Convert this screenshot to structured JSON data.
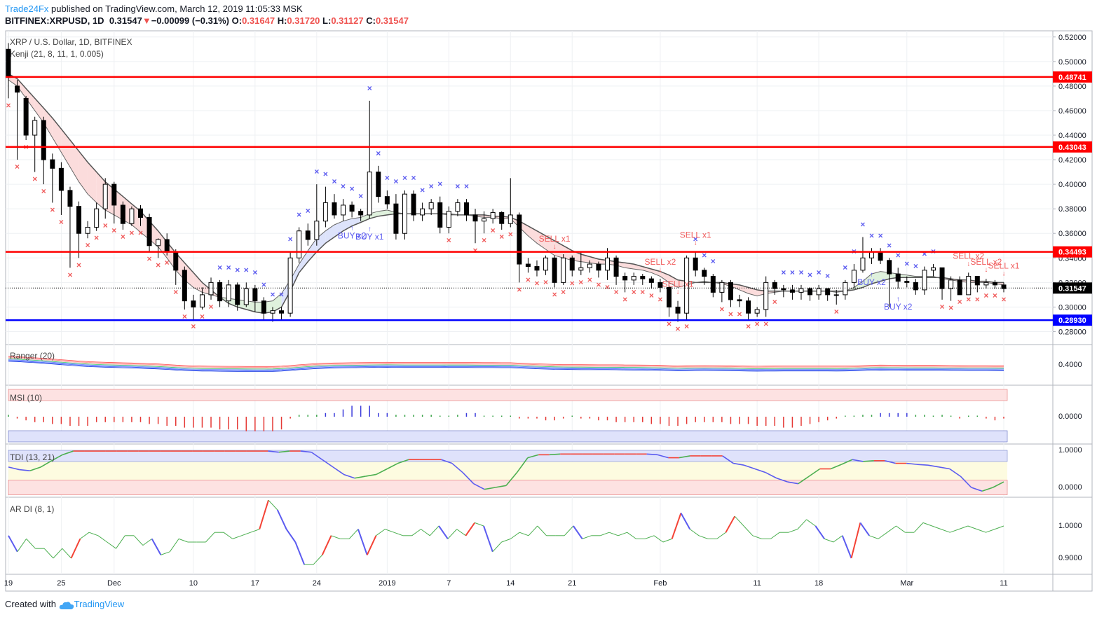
{
  "header": {
    "publisher": "Trade24Fx",
    "published_text": "published on TradingView.com, March 12, 2019 11:05:33 MSK",
    "symbol": "BITFINEX:XRPUSD, 1D",
    "last": "0.31547",
    "change": "−0.00099 (−0.31%)",
    "o_label": "O:",
    "o": "0.31647",
    "h_label": "H:",
    "h": "0.31720",
    "l_label": "L:",
    "l": "0.31127",
    "c_label": "C:",
    "c": "0.31547"
  },
  "footer": {
    "created_with": "Created with",
    "brand": "TradingView"
  },
  "colors": {
    "up": "#ffffff",
    "down": "#000000",
    "red_line": "#ff0000",
    "blue_line": "#0000ff",
    "buy_mark": "#5b5bf0",
    "sell_mark": "#f05b5b",
    "axis_text": "#131722",
    "grid": "#eef0f3"
  },
  "chart_data": {
    "type": "candlestick",
    "main": {
      "title": "XRP / U.S. Dollar, 1D, BITFINEX",
      "indicator_label": "Kenji (21, 8, 11, 1, 0.005)",
      "ylim": [
        0.27,
        0.525
      ],
      "y_ticks": [
        "0.52000",
        "0.50000",
        "0.48000",
        "0.46000",
        "0.44000",
        "0.42000",
        "0.40000",
        "0.38000",
        "0.36000",
        "0.34000",
        "0.32000",
        "0.30000",
        "0.28000"
      ],
      "y_tick_values": [
        0.52,
        0.5,
        0.48,
        0.46,
        0.44,
        0.42,
        0.4,
        0.38,
        0.36,
        0.34,
        0.32,
        0.3,
        0.28
      ],
      "x_labels": [
        "19",
        "25",
        "Dec",
        "10",
        "17",
        "24",
        "2019",
        "7",
        "14",
        "21",
        "Feb",
        "11",
        "18",
        "Mar",
        "11"
      ],
      "x_label_bar_index": [
        0,
        6,
        12,
        21,
        28,
        35,
        43,
        50,
        57,
        64,
        74,
        85,
        92,
        102,
        113
      ],
      "bar_count": 114,
      "price_lines": [
        {
          "value": 0.48741,
          "label": "0.48741",
          "color": "#ff0000"
        },
        {
          "value": 0.43043,
          "label": "0.43043",
          "color": "#ff0000"
        },
        {
          "value": 0.34493,
          "label": "0.34493",
          "color": "#ff0000"
        },
        {
          "value": 0.2893,
          "label": "0.28930",
          "color": "#0000ff"
        }
      ],
      "last_price": {
        "value": 0.31547,
        "label": "0.31547"
      },
      "close": [
        0.487,
        0.475,
        0.44,
        0.452,
        0.42,
        0.413,
        0.395,
        0.382,
        0.36,
        0.365,
        0.38,
        0.4,
        0.383,
        0.368,
        0.38,
        0.373,
        0.35,
        0.355,
        0.345,
        0.33,
        0.305,
        0.3,
        0.31,
        0.32,
        0.305,
        0.318,
        0.302,
        0.315,
        0.305,
        0.295,
        0.297,
        0.295,
        0.34,
        0.362,
        0.355,
        0.37,
        0.385,
        0.375,
        0.383,
        0.378,
        0.375,
        0.41,
        0.39,
        0.384,
        0.36,
        0.392,
        0.375,
        0.38,
        0.385,
        0.365,
        0.378,
        0.385,
        0.375,
        0.37,
        0.372,
        0.377,
        0.368,
        0.375,
        0.335,
        0.333,
        0.33,
        0.34,
        0.32,
        0.34,
        0.33,
        0.332,
        0.335,
        0.33,
        0.34,
        0.325,
        0.322,
        0.325,
        0.323,
        0.32,
        0.316,
        0.3,
        0.295,
        0.34,
        0.33,
        0.325,
        0.312,
        0.32,
        0.306,
        0.305,
        0.295,
        0.298,
        0.32,
        0.315,
        0.314,
        0.312,
        0.315,
        0.31,
        0.315,
        0.31,
        0.31,
        0.32,
        0.33,
        0.34,
        0.345,
        0.338,
        0.327,
        0.321,
        0.32,
        0.314,
        0.33,
        0.332,
        0.315,
        0.322,
        0.31,
        0.325,
        0.318,
        0.32,
        0.318,
        0.315
      ],
      "open": [
        0.51,
        0.48,
        0.47,
        0.44,
        0.452,
        0.42,
        0.413,
        0.395,
        0.382,
        0.36,
        0.365,
        0.38,
        0.4,
        0.383,
        0.368,
        0.38,
        0.373,
        0.35,
        0.355,
        0.345,
        0.33,
        0.305,
        0.3,
        0.31,
        0.32,
        0.305,
        0.318,
        0.302,
        0.315,
        0.305,
        0.295,
        0.297,
        0.295,
        0.34,
        0.362,
        0.355,
        0.37,
        0.385,
        0.375,
        0.383,
        0.378,
        0.375,
        0.41,
        0.39,
        0.384,
        0.36,
        0.392,
        0.375,
        0.38,
        0.385,
        0.365,
        0.378,
        0.385,
        0.375,
        0.37,
        0.372,
        0.377,
        0.368,
        0.375,
        0.335,
        0.333,
        0.33,
        0.34,
        0.32,
        0.34,
        0.33,
        0.332,
        0.335,
        0.33,
        0.34,
        0.325,
        0.322,
        0.325,
        0.323,
        0.32,
        0.316,
        0.3,
        0.295,
        0.34,
        0.33,
        0.325,
        0.312,
        0.32,
        0.306,
        0.305,
        0.295,
        0.298,
        0.32,
        0.315,
        0.314,
        0.312,
        0.315,
        0.31,
        0.315,
        0.31,
        0.31,
        0.32,
        0.33,
        0.34,
        0.345,
        0.338,
        0.327,
        0.321,
        0.32,
        0.314,
        0.33,
        0.332,
        0.315,
        0.322,
        0.31,
        0.325,
        0.318,
        0.32,
        0.318
      ],
      "high": [
        0.515,
        0.485,
        0.472,
        0.455,
        0.455,
        0.425,
        0.418,
        0.398,
        0.386,
        0.37,
        0.385,
        0.405,
        0.402,
        0.386,
        0.382,
        0.383,
        0.376,
        0.356,
        0.36,
        0.347,
        0.333,
        0.31,
        0.316,
        0.324,
        0.322,
        0.322,
        0.32,
        0.32,
        0.318,
        0.308,
        0.3,
        0.3,
        0.345,
        0.365,
        0.368,
        0.4,
        0.398,
        0.392,
        0.388,
        0.386,
        0.38,
        0.468,
        0.415,
        0.395,
        0.392,
        0.395,
        0.395,
        0.385,
        0.388,
        0.39,
        0.382,
        0.388,
        0.388,
        0.38,
        0.378,
        0.38,
        0.378,
        0.405,
        0.377,
        0.34,
        0.338,
        0.342,
        0.342,
        0.343,
        0.342,
        0.345,
        0.338,
        0.337,
        0.348,
        0.342,
        0.328,
        0.328,
        0.327,
        0.325,
        0.323,
        0.318,
        0.305,
        0.342,
        0.345,
        0.332,
        0.327,
        0.322,
        0.322,
        0.31,
        0.308,
        0.3,
        0.325,
        0.322,
        0.318,
        0.318,
        0.318,
        0.316,
        0.318,
        0.315,
        0.314,
        0.322,
        0.335,
        0.357,
        0.348,
        0.348,
        0.34,
        0.332,
        0.325,
        0.323,
        0.333,
        0.335,
        0.332,
        0.325,
        0.325,
        0.328,
        0.325,
        0.323,
        0.322,
        0.32
      ],
      "low": [
        0.47,
        0.42,
        0.436,
        0.41,
        0.4,
        0.385,
        0.375,
        0.332,
        0.34,
        0.356,
        0.362,
        0.372,
        0.368,
        0.363,
        0.366,
        0.366,
        0.345,
        0.34,
        0.342,
        0.318,
        0.298,
        0.29,
        0.298,
        0.306,
        0.3,
        0.3,
        0.297,
        0.3,
        0.296,
        0.29,
        0.288,
        0.29,
        0.292,
        0.336,
        0.35,
        0.35,
        0.365,
        0.372,
        0.37,
        0.373,
        0.37,
        0.372,
        0.385,
        0.38,
        0.355,
        0.355,
        0.37,
        0.37,
        0.375,
        0.36,
        0.36,
        0.374,
        0.37,
        0.352,
        0.36,
        0.368,
        0.363,
        0.365,
        0.32,
        0.328,
        0.325,
        0.326,
        0.316,
        0.318,
        0.325,
        0.326,
        0.328,
        0.324,
        0.322,
        0.318,
        0.312,
        0.318,
        0.318,
        0.315,
        0.312,
        0.292,
        0.288,
        0.29,
        0.325,
        0.318,
        0.308,
        0.304,
        0.3,
        0.3,
        0.29,
        0.292,
        0.292,
        0.31,
        0.308,
        0.306,
        0.306,
        0.305,
        0.306,
        0.305,
        0.302,
        0.306,
        0.315,
        0.328,
        0.335,
        0.335,
        0.3,
        0.315,
        0.316,
        0.31,
        0.31,
        0.325,
        0.306,
        0.305,
        0.31,
        0.312,
        0.312,
        0.315,
        0.315,
        0.312
      ],
      "cloud_fast": [
        0.485,
        0.48,
        0.47,
        0.46,
        0.45,
        0.438,
        0.426,
        0.414,
        0.402,
        0.392,
        0.385,
        0.379,
        0.375,
        0.371,
        0.367,
        0.361,
        0.355,
        0.349,
        0.34,
        0.33,
        0.322,
        0.316,
        0.312,
        0.31,
        0.308,
        0.307,
        0.306,
        0.305,
        0.304,
        0.304,
        0.305,
        0.311,
        0.322,
        0.335,
        0.346,
        0.356,
        0.362,
        0.367,
        0.37,
        0.372,
        0.373,
        0.376,
        0.378,
        0.379,
        0.377,
        0.376,
        0.376,
        0.376,
        0.376,
        0.376,
        0.375,
        0.375,
        0.375,
        0.374,
        0.373,
        0.373,
        0.372,
        0.372,
        0.365,
        0.358,
        0.352,
        0.347,
        0.342,
        0.34,
        0.338,
        0.337,
        0.336,
        0.335,
        0.335,
        0.334,
        0.332,
        0.331,
        0.33,
        0.328,
        0.325,
        0.32,
        0.316,
        0.318,
        0.32,
        0.321,
        0.32,
        0.319,
        0.317,
        0.314,
        0.311,
        0.309,
        0.311,
        0.312,
        0.313,
        0.313,
        0.313,
        0.313,
        0.313,
        0.313,
        0.312,
        0.313,
        0.316,
        0.321,
        0.327,
        0.329,
        0.328,
        0.327,
        0.326,
        0.325,
        0.325,
        0.325,
        0.323,
        0.322,
        0.321,
        0.32,
        0.32,
        0.32,
        0.319,
        0.318
      ],
      "cloud_slow": [
        0.49,
        0.486,
        0.478,
        0.47,
        0.462,
        0.454,
        0.445,
        0.436,
        0.427,
        0.418,
        0.41,
        0.402,
        0.396,
        0.39,
        0.384,
        0.378,
        0.37,
        0.362,
        0.353,
        0.344,
        0.336,
        0.328,
        0.32,
        0.314,
        0.308,
        0.303,
        0.3,
        0.298,
        0.296,
        0.295,
        0.296,
        0.3,
        0.313,
        0.328,
        0.337,
        0.345,
        0.352,
        0.357,
        0.362,
        0.366,
        0.369,
        0.372,
        0.374,
        0.375,
        0.376,
        0.376,
        0.376,
        0.376,
        0.376,
        0.376,
        0.376,
        0.375,
        0.375,
        0.375,
        0.375,
        0.374,
        0.374,
        0.373,
        0.37,
        0.366,
        0.362,
        0.358,
        0.354,
        0.35,
        0.346,
        0.343,
        0.341,
        0.339,
        0.338,
        0.337,
        0.336,
        0.335,
        0.333,
        0.331,
        0.329,
        0.326,
        0.322,
        0.321,
        0.32,
        0.32,
        0.32,
        0.32,
        0.319,
        0.318,
        0.316,
        0.314,
        0.313,
        0.313,
        0.313,
        0.313,
        0.313,
        0.313,
        0.313,
        0.313,
        0.313,
        0.313,
        0.314,
        0.316,
        0.319,
        0.321,
        0.323,
        0.324,
        0.324,
        0.324,
        0.324,
        0.324,
        0.324,
        0.323,
        0.322,
        0.322,
        0.321,
        0.321,
        0.32,
        0.32
      ],
      "buy_signals": [
        {
          "bar": 39,
          "label": "BUY x2"
        },
        {
          "bar": 41,
          "label": "BUY x1"
        },
        {
          "bar": 98,
          "label": "BUY x2"
        },
        {
          "bar": 101,
          "label": "BUY x2"
        }
      ],
      "sell_signals": [
        {
          "bar": 62,
          "label": "SELL x1"
        },
        {
          "bar": 74,
          "label": "SELL x2"
        },
        {
          "bar": 76,
          "label": "SELL x1"
        },
        {
          "bar": 78,
          "label": "SELL x1"
        },
        {
          "bar": 109,
          "label": "SELL x2"
        },
        {
          "bar": 111,
          "label": "SELL x2"
        },
        {
          "bar": 113,
          "label": "SELL x1"
        }
      ]
    },
    "ranger": {
      "label": "Ranger (20)",
      "y_tick": "0.4000"
    },
    "msi": {
      "label": "MSI (10)",
      "y_tick": "0.0000",
      "values": [
        0.1,
        -0.1,
        -0.2,
        -0.3,
        -0.3,
        -0.4,
        -0.4,
        -0.5,
        -0.5,
        -0.5,
        -0.3,
        -0.3,
        -0.3,
        -0.3,
        -0.3,
        -0.3,
        -0.4,
        -0.4,
        -0.5,
        -0.5,
        -0.6,
        -0.6,
        -0.6,
        -0.6,
        -0.7,
        -0.7,
        -0.7,
        -0.8,
        -0.8,
        -0.8,
        -0.8,
        -0.7,
        -0.1,
        0.1,
        0.1,
        0.1,
        0.2,
        0.2,
        0.4,
        0.6,
        0.6,
        0.6,
        0.2,
        0.2,
        0.1,
        0.1,
        0.1,
        0.1,
        0.1,
        0.0,
        0.0,
        0.1,
        0.2,
        0.2,
        0.0,
        0.0,
        0.0,
        0.0,
        -0.1,
        -0.1,
        -0.1,
        -0.2,
        -0.2,
        -0.1,
        0.0,
        -0.1,
        -0.1,
        -0.2,
        -0.2,
        -0.3,
        -0.3,
        -0.3,
        -0.3,
        -0.4,
        -0.4,
        -0.5,
        -0.5,
        -0.4,
        -0.3,
        -0.3,
        -0.3,
        -0.3,
        -0.4,
        -0.4,
        -0.4,
        -0.5,
        -0.5,
        -0.5,
        -0.6,
        -0.6,
        -0.5,
        -0.4,
        -0.3,
        -0.2,
        -0.1,
        0.0,
        0.0,
        0.1,
        0.1,
        0.2,
        0.2,
        0.2,
        0.2,
        0.1,
        0.1,
        0.0,
        0.1,
        0.0,
        -0.1,
        0.0,
        0.0,
        -0.1,
        -0.2,
        -0.1
      ]
    },
    "tdi": {
      "label": "TDI (13, 21)",
      "y_ticks": [
        "1.0000",
        "0.0000"
      ],
      "values": [
        0.55,
        0.48,
        0.45,
        0.55,
        0.72,
        0.88,
        0.98,
        0.98,
        0.98,
        0.98,
        0.98,
        0.98,
        0.98,
        0.98,
        0.98,
        0.98,
        0.98,
        0.98,
        0.98,
        0.98,
        0.98,
        0.98,
        0.98,
        0.98,
        0.98,
        0.95,
        0.98,
        0.98,
        0.95,
        0.75,
        0.55,
        0.35,
        0.25,
        0.3,
        0.35,
        0.5,
        0.65,
        0.75,
        0.75,
        0.75,
        0.75,
        0.65,
        0.4,
        0.1,
        -0.05,
        0.0,
        0.05,
        0.4,
        0.8,
        0.88,
        0.88,
        0.9,
        0.9,
        0.9,
        0.9,
        0.9,
        0.9,
        0.9,
        0.9,
        0.9,
        0.88,
        0.8,
        0.8,
        0.85,
        0.85,
        0.85,
        0.85,
        0.65,
        0.6,
        0.5,
        0.4,
        0.25,
        0.15,
        0.1,
        0.3,
        0.5,
        0.5,
        0.62,
        0.75,
        0.7,
        0.72,
        0.72,
        0.65,
        0.65,
        0.62,
        0.6,
        0.55,
        0.5,
        0.3,
        0.0,
        -0.1,
        0.0,
        0.15
      ]
    },
    "ardi": {
      "label": "AR DI (8, 1)",
      "y_ticks": [
        "1.0000",
        "0.9000"
      ],
      "values": [
        0.97,
        0.92,
        0.96,
        0.93,
        0.93,
        0.9,
        0.93,
        0.9,
        0.96,
        0.98,
        0.97,
        0.95,
        0.93,
        0.97,
        0.97,
        0.94,
        0.96,
        0.91,
        0.92,
        0.96,
        0.95,
        0.95,
        0.95,
        0.98,
        0.98,
        0.96,
        0.97,
        0.98,
        0.99,
        1.08,
        1.05,
        0.99,
        0.95,
        0.88,
        0.88,
        0.91,
        0.97,
        0.96,
        0.96,
        0.99,
        0.91,
        0.97,
        0.99,
        0.98,
        0.97,
        0.97,
        0.99,
        0.97,
        1.0,
        0.96,
        0.99,
        0.97,
        1.01,
        1.0,
        0.92,
        0.95,
        0.96,
        0.98,
        0.97,
        1.0,
        0.97,
        0.97,
        0.97,
        1.0,
        0.96,
        0.97,
        0.97,
        0.98,
        0.97,
        0.98,
        0.96,
        0.96,
        0.97,
        0.95,
        0.96,
        1.04,
        0.99,
        0.97,
        0.96,
        0.96,
        0.98,
        1.03,
        1.0,
        0.97,
        0.96,
        0.96,
        0.98,
        0.98,
        0.99,
        1.02,
        1.0,
        0.96,
        0.95,
        0.97,
        0.9,
        1.01,
        0.97,
        0.96,
        0.98,
        1.0,
        0.98,
        0.98,
        1.01,
        1.0,
        0.99,
        0.98,
        0.99,
        1.0,
        0.99,
        0.98,
        0.99,
        1.0
      ]
    }
  }
}
